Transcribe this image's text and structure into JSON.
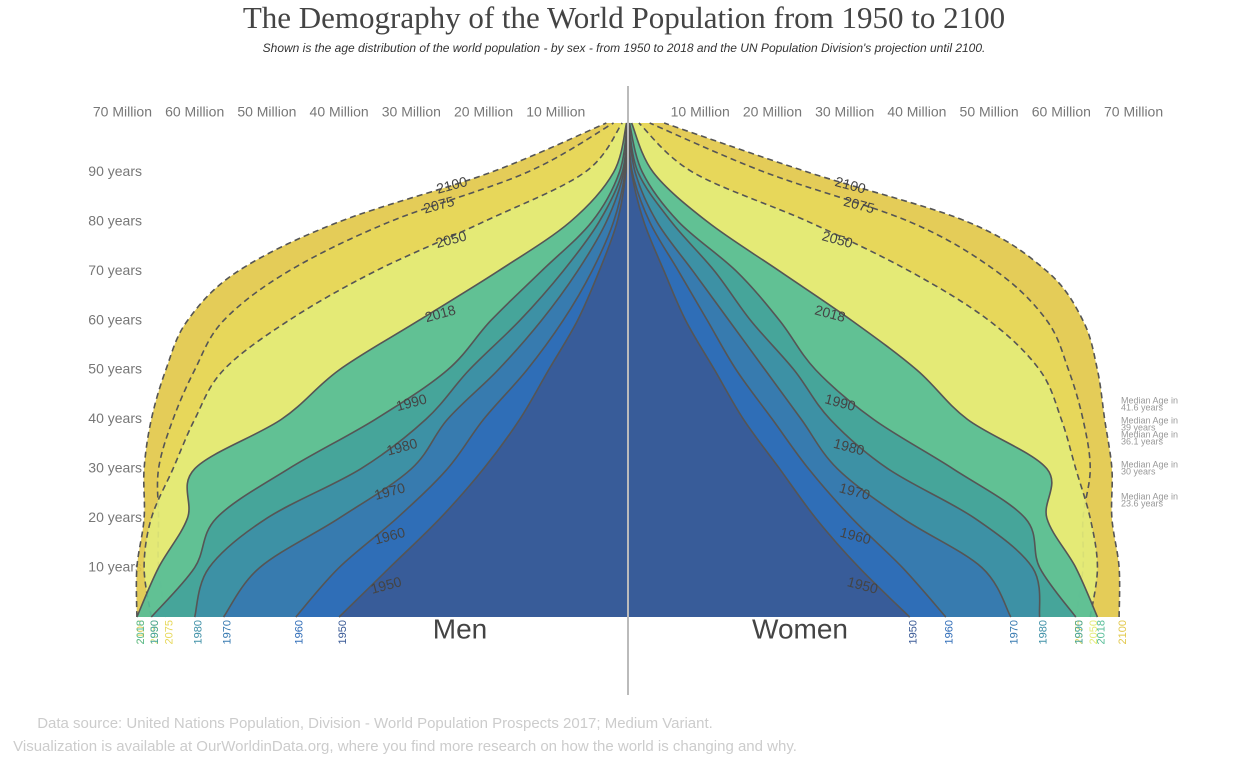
{
  "chart_data": {
    "type": "pyramid",
    "title": "The Demography of the World Population from 1950 to 2100",
    "subtitle": "Shown is the age distribution of the world population - by sex - from 1950 to 2018 and the UN Population Division's projection until 2100.",
    "left_label": "Men",
    "right_label": "Women",
    "xlim": [
      0,
      72
    ],
    "xticks": [
      {
        "value": 10,
        "label": "10 Million"
      },
      {
        "value": 20,
        "label": "20 Million"
      },
      {
        "value": 30,
        "label": "30 Million"
      },
      {
        "value": 40,
        "label": "40 Million"
      },
      {
        "value": 50,
        "label": "50 Million"
      },
      {
        "value": 60,
        "label": "60 Million"
      },
      {
        "value": 70,
        "label": "70 Million"
      }
    ],
    "ylim": [
      0,
      100
    ],
    "yticks": [
      {
        "value": 10,
        "label": "10 years"
      },
      {
        "value": 20,
        "label": "20 years"
      },
      {
        "value": 30,
        "label": "30 years"
      },
      {
        "value": 40,
        "label": "40 years"
      },
      {
        "value": 50,
        "label": "50 years"
      },
      {
        "value": 60,
        "label": "60 years"
      },
      {
        "value": 70,
        "label": "70 years"
      },
      {
        "value": 80,
        "label": "80 years"
      },
      {
        "value": 90,
        "label": "90 years"
      }
    ],
    "ages": [
      0,
      10,
      20,
      30,
      40,
      50,
      60,
      70,
      80,
      90,
      100
    ],
    "series": [
      {
        "name": "2100",
        "color": "#e2c84a",
        "dashed": true,
        "men": [
          68,
          68,
          67,
          67,
          66,
          64,
          61,
          54,
          40,
          19,
          3
        ],
        "women": [
          68,
          68,
          67,
          67,
          66,
          65,
          63,
          58,
          47,
          25,
          5
        ]
      },
      {
        "name": "2075",
        "color": "#e7d85a",
        "dashed": true,
        "men": [
          64,
          65,
          65,
          65,
          63,
          60,
          56,
          47,
          33,
          14,
          2
        ],
        "women": [
          62,
          63,
          63,
          64,
          63,
          61,
          58,
          51,
          39,
          19,
          3
        ]
      },
      {
        "name": "2050",
        "color": "#e4eb78",
        "dashed": true,
        "men": [
          66,
          67,
          66,
          63,
          60,
          56,
          47,
          35,
          20,
          6,
          0.8
        ],
        "women": [
          64,
          65,
          64,
          62,
          60,
          57,
          50,
          39,
          25,
          9,
          1.5
        ]
      },
      {
        "name": "2018",
        "color": "#56bd97",
        "dashed": false,
        "men": [
          68,
          65,
          61,
          60,
          48,
          40,
          29,
          18,
          8,
          2,
          0.2
        ],
        "women": [
          65,
          62,
          58,
          58,
          47,
          40,
          31,
          21,
          11,
          3.5,
          0.5
        ]
      },
      {
        "name": "1990",
        "color": "#44a39a",
        "dashed": false,
        "men": [
          66,
          60,
          57,
          47,
          35,
          25,
          19,
          12,
          5,
          1.2,
          0.1
        ],
        "women": [
          62,
          57,
          55,
          45,
          34,
          26,
          21,
          15,
          7,
          2,
          0.2
        ]
      },
      {
        "name": "1980",
        "color": "#3d8fa6",
        "dashed": false,
        "men": [
          60,
          58,
          50,
          37,
          28,
          22,
          15,
          9,
          4,
          0.8,
          0.1
        ],
        "women": [
          57,
          56,
          48,
          36,
          28,
          23,
          17,
          12,
          6,
          1.4,
          0.1
        ]
      },
      {
        "name": "1970",
        "color": "#3679b0",
        "dashed": false,
        "men": [
          56,
          51,
          40,
          30,
          25,
          18,
          12,
          7,
          3,
          0.6,
          0.05
        ],
        "women": [
          53,
          49,
          38,
          29,
          24,
          19,
          14,
          9,
          4,
          1,
          0.05
        ]
      },
      {
        "name": "1960",
        "color": "#2f6cb7",
        "dashed": false,
        "men": [
          46,
          40,
          32,
          25,
          20,
          14,
          9,
          5,
          2,
          0.4,
          0
        ],
        "women": [
          44,
          38,
          31,
          25,
          20,
          15,
          11,
          7,
          3,
          0.6,
          0
        ]
      },
      {
        "name": "1950",
        "color": "#3a5a96",
        "dashed": false,
        "men": [
          40,
          33,
          26,
          20,
          15,
          11,
          7,
          4,
          1.5,
          0.3,
          0
        ],
        "women": [
          39,
          32,
          26,
          21,
          16,
          12,
          8,
          5,
          2.2,
          0.5,
          0
        ]
      }
    ],
    "annotations": [
      [
        "Median Age in",
        "41.6 years"
      ],
      [
        "Median Age in",
        "39 years"
      ],
      [
        "Median Age in",
        "36.1 years"
      ],
      [
        "Median Age in",
        "30 years"
      ],
      [
        "Median Age in",
        "23.6 years"
      ]
    ],
    "source": "Data source: United Nations Population, Division - World Population Prospects 2017; Medium Variant.",
    "note": "Visualization is available at OurWorldinData.org, where you find more research on how the world is changing and why."
  }
}
